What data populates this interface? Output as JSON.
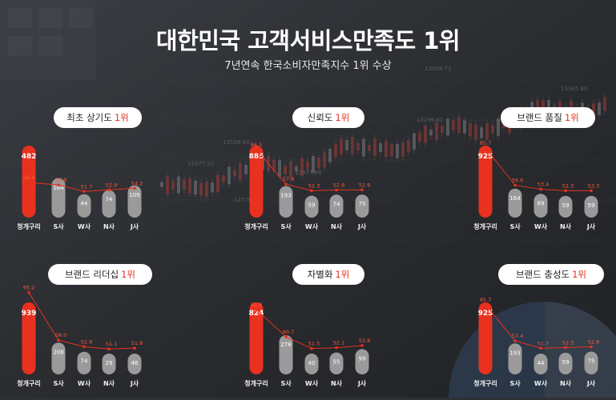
{
  "header": {
    "title": "대한민국 고객서비스만족도 1위",
    "subtitle": "7년연속 한국소비자만족지수 1위 수상"
  },
  "colors": {
    "accent": "#e8311e",
    "bar_gray": "#9a9a9a",
    "pill_bg": "#ffffff"
  },
  "chart_data": [
    {
      "type": "bar",
      "title": "최초 상기도",
      "rank": "1위",
      "categories": [
        "청개구리",
        "S사",
        "W사",
        "N사",
        "J사"
      ],
      "values": [
        482,
        164,
        44,
        74,
        109
      ],
      "line_values": [
        58.6,
        56.8,
        51.7,
        52.9,
        54.2
      ]
    },
    {
      "type": "bar",
      "title": "신뢰도",
      "rank": "1위",
      "categories": [
        "청개구리",
        "S사",
        "W사",
        "N사",
        "J사"
      ],
      "values": [
        885,
        193,
        59,
        74,
        75
      ],
      "line_values": [
        84.5,
        57.4,
        52.3,
        52.8,
        52.9
      ]
    },
    {
      "type": "bar",
      "title": "브랜드 품질",
      "rank": "1위",
      "categories": [
        "청개구리",
        "S사",
        "W사",
        "N사",
        "J사"
      ],
      "values": [
        925,
        164,
        89,
        59,
        59
      ],
      "line_values": [
        85.7,
        56.6,
        53.4,
        52.3,
        52.3
      ]
    },
    {
      "type": "bar",
      "title": "브랜드 리더십",
      "rank": "1위",
      "categories": [
        "청개구리",
        "S사",
        "W사",
        "N사",
        "J사"
      ],
      "values": [
        939,
        208,
        74,
        29,
        46
      ],
      "line_values": [
        95.2,
        58.0,
        52.9,
        51.1,
        51.8
      ]
    },
    {
      "type": "bar",
      "title": "차별화",
      "rank": "1위",
      "categories": [
        "청개구리",
        "S사",
        "W사",
        "N사",
        "J사"
      ],
      "values": [
        824,
        278,
        40,
        55,
        99
      ],
      "line_values": [
        81.8,
        60.7,
        51.5,
        52.1,
        53.8
      ]
    },
    {
      "type": "bar",
      "title": "브랜드 충성도",
      "rank": "1위",
      "categories": [
        "청개구리",
        "S사",
        "W사",
        "N사",
        "J사"
      ],
      "values": [
        925,
        193,
        44,
        59,
        75
      ],
      "line_values": [
        85.7,
        57.4,
        51.7,
        52.3,
        52.8
      ]
    }
  ],
  "background_text": [
    "13528.64",
    "12977.52",
    "12776.45",
    "13296.42",
    "13365.86",
    "13008.71",
    "12977.86"
  ]
}
